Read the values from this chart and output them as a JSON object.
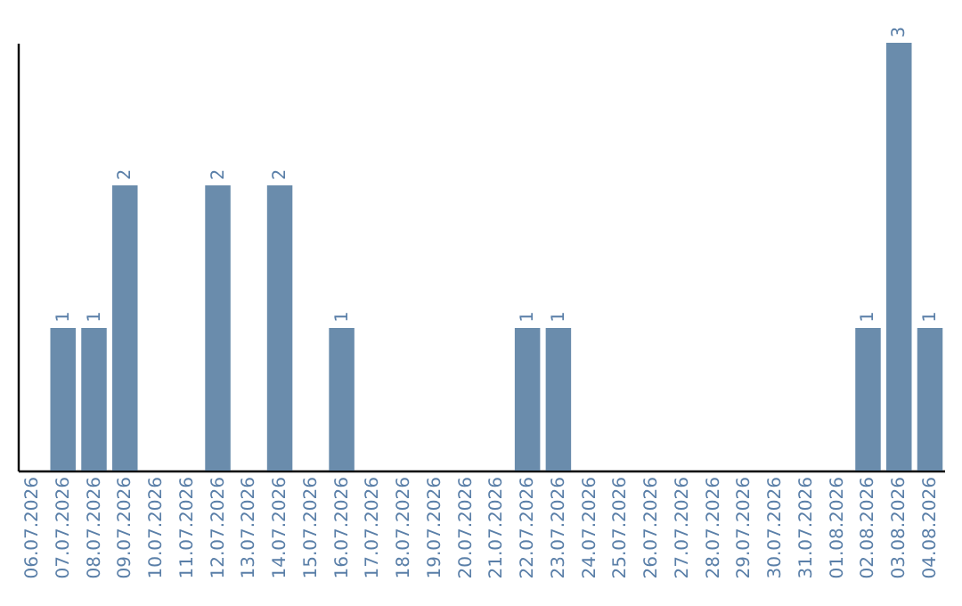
{
  "chart_data": {
    "type": "bar",
    "categories": [
      "06.07.2026",
      "07.07.2026",
      "08.07.2026",
      "09.07.2026",
      "10.07.2026",
      "11.07.2026",
      "12.07.2026",
      "13.07.2026",
      "14.07.2026",
      "15.07.2026",
      "16.07.2026",
      "17.07.2026",
      "18.07.2026",
      "19.07.2026",
      "20.07.2026",
      "21.07.2026",
      "22.07.2026",
      "23.07.2026",
      "24.07.2026",
      "25.07.2026",
      "26.07.2026",
      "27.07.2026",
      "28.07.2026",
      "29.07.2026",
      "30.07.2026",
      "31.07.2026",
      "01.08.2026",
      "02.08.2026",
      "03.08.2026",
      "04.08.2026"
    ],
    "values": [
      0,
      1,
      1,
      2,
      0,
      0,
      2,
      0,
      2,
      0,
      1,
      0,
      0,
      0,
      0,
      0,
      1,
      1,
      0,
      0,
      0,
      0,
      0,
      0,
      0,
      0,
      0,
      1,
      3,
      1
    ],
    "value_labels": [
      null,
      "1",
      "1",
      "2",
      null,
      null,
      "2",
      null,
      "2",
      null,
      "1",
      null,
      null,
      null,
      null,
      null,
      "1",
      "1",
      null,
      null,
      null,
      null,
      null,
      null,
      null,
      null,
      null,
      "1",
      "3",
      "1"
    ],
    "color": "#6a8cac",
    "tick_labels": "x"
  }
}
